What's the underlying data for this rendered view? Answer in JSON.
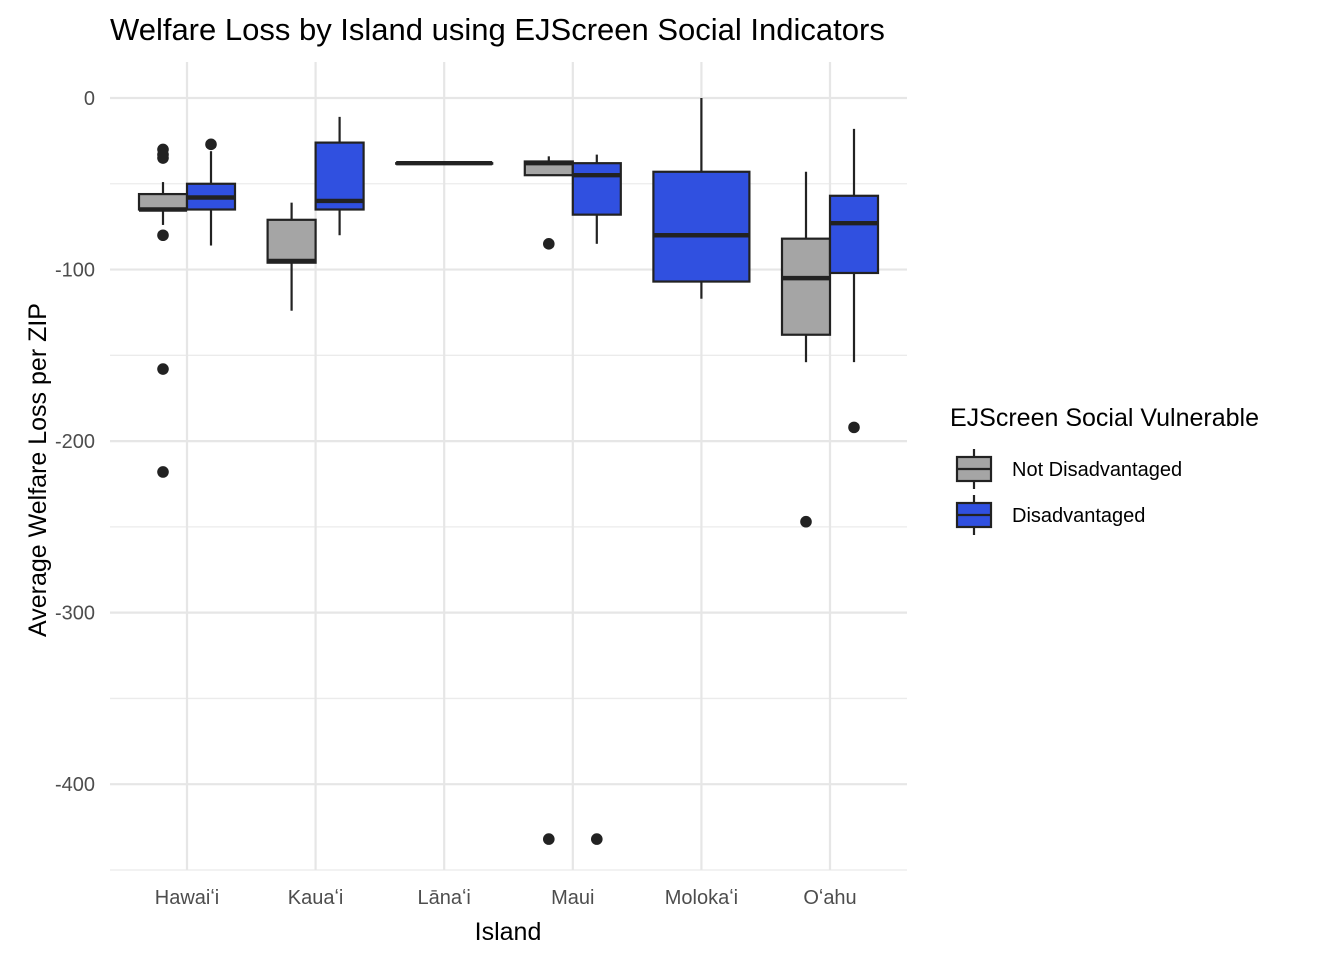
{
  "chart_data": {
    "type": "boxplot",
    "title": "Welfare Loss by Island using EJScreen Social Indicators",
    "xlabel": "Island",
    "ylabel": "Average Welfare Loss per ZIP",
    "ylim": [
      -450,
      20
    ],
    "yticks": [
      0,
      -100,
      -200,
      -300,
      -400
    ],
    "ytick_labels": [
      "0",
      "-100",
      "-200",
      "-300",
      "-400"
    ],
    "grid": true,
    "legend": {
      "title": "EJScreen Social Vulnerable",
      "position": "right",
      "entries": [
        "Not Disadvantaged",
        "Disadvantaged"
      ]
    },
    "categories": [
      "Hawaiʻi",
      "Kauaʻi",
      "Lānaʻi",
      "Maui",
      "Molokaʻi",
      "Oʻahu"
    ],
    "series": [
      {
        "name": "Not Disadvantaged",
        "color": "#a5a5a5",
        "boxes": [
          {
            "category": "Hawaiʻi",
            "q1": -65,
            "median": -65,
            "q3": -56,
            "whisker_low": -74,
            "whisker_high": -49,
            "outliers": [
              -30,
              -33,
              -35,
              -80,
              -158,
              -218
            ]
          },
          {
            "category": "Kauaʻi",
            "q1": -96,
            "median": -95,
            "q3": -71,
            "whisker_low": -124,
            "whisker_high": -61,
            "outliers": []
          },
          {
            "category": "Lānaʻi",
            "q1": -38,
            "median": -38,
            "q3": -38,
            "whisker_low": -38,
            "whisker_high": -38,
            "outliers": []
          },
          {
            "category": "Maui",
            "q1": -45,
            "median": -38,
            "q3": -37,
            "whisker_low": -45,
            "whisker_high": -34,
            "outliers": [
              -85,
              -432
            ]
          },
          {
            "category": "Oʻahu",
            "q1": -138,
            "median": -105,
            "q3": -82,
            "whisker_low": -154,
            "whisker_high": -43,
            "outliers": [
              -247
            ]
          }
        ]
      },
      {
        "name": "Disadvantaged",
        "color": "#3050e0",
        "boxes": [
          {
            "category": "Hawaiʻi",
            "q1": -65,
            "median": -58,
            "q3": -50,
            "whisker_low": -86,
            "whisker_high": -31,
            "outliers": [
              -27
            ]
          },
          {
            "category": "Kauaʻi",
            "q1": -65,
            "median": -60,
            "q3": -26,
            "whisker_low": -80,
            "whisker_high": -11,
            "outliers": []
          },
          {
            "category": "Maui",
            "q1": -68,
            "median": -45,
            "q3": -38,
            "whisker_low": -85,
            "whisker_high": -33,
            "outliers": [
              -432
            ]
          },
          {
            "category": "Molokaʻi",
            "q1": -107,
            "median": -80,
            "q3": -43,
            "whisker_low": -117,
            "whisker_high": 0,
            "outliers": []
          },
          {
            "category": "Oʻahu",
            "q1": -102,
            "median": -73,
            "q3": -57,
            "whisker_low": -154,
            "whisker_high": -18,
            "outliers": [
              -192
            ]
          }
        ]
      }
    ]
  }
}
